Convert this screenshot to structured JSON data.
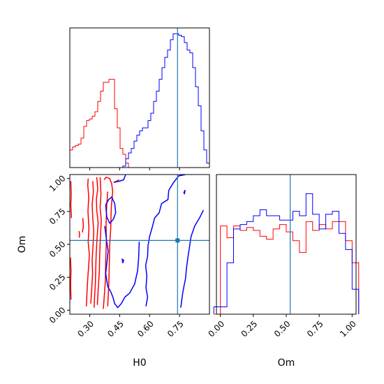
{
  "chart_data": {
    "type": "corner",
    "params": [
      "H0",
      "Om"
    ],
    "xlabels": {
      "h0": "H0",
      "om": "Om"
    },
    "ylabel": "Om",
    "colors": {
      "series_a": "#ff0000",
      "series_b": "#0000ff",
      "truth": "#1f77b4"
    },
    "truth": {
      "H0": 0.74,
      "Om": 0.53
    },
    "ranges": {
      "H0": [
        0.2,
        0.9
      ],
      "Om": [
        -0.03,
        1.03
      ]
    },
    "ticks": {
      "H0": [
        0.3,
        0.45,
        0.6,
        0.75
      ],
      "Om": [
        0.0,
        0.25,
        0.5,
        0.75,
        1.0
      ]
    },
    "tick_labels": {
      "H0": [
        "0.30",
        "0.45",
        "0.60",
        "0.75"
      ],
      "Om": [
        "0.00",
        "0.25",
        "0.50",
        "0.75",
        "1.00"
      ]
    },
    "hist_H0": {
      "bins": [
        0.2,
        0.214,
        0.228,
        0.242,
        0.256,
        0.27,
        0.284,
        0.298,
        0.312,
        0.326,
        0.34,
        0.354,
        0.368,
        0.382,
        0.396,
        0.41,
        0.424,
        0.438,
        0.452,
        0.466,
        0.48,
        0.494,
        0.508,
        0.522,
        0.536,
        0.55,
        0.564,
        0.578,
        0.592,
        0.606,
        0.62,
        0.634,
        0.648,
        0.662,
        0.676,
        0.69,
        0.704,
        0.718,
        0.732,
        0.746,
        0.76,
        0.774,
        0.788,
        0.802,
        0.816,
        0.83,
        0.844,
        0.858,
        0.872,
        0.886,
        0.9
      ],
      "series_a": [
        0.12,
        0.14,
        0.15,
        0.16,
        0.2,
        0.28,
        0.32,
        0.33,
        0.35,
        0.38,
        0.45,
        0.52,
        0.58,
        0.58,
        0.6,
        0.6,
        0.4,
        0.27,
        0.13,
        0.09,
        0.03,
        0,
        0,
        0,
        0,
        0,
        0,
        0,
        0,
        0,
        0,
        0,
        0,
        0,
        0,
        0,
        0,
        0,
        0,
        0,
        0,
        0,
        0,
        0,
        0,
        0,
        0,
        0,
        0,
        0
      ],
      "series_b": [
        0,
        0,
        0,
        0,
        0,
        0,
        0,
        0,
        0,
        0,
        0,
        0,
        0,
        0,
        0,
        0,
        0,
        0,
        0,
        0.01,
        0.06,
        0.1,
        0.13,
        0.18,
        0.22,
        0.25,
        0.27,
        0.27,
        0.32,
        0.37,
        0.45,
        0.52,
        0.6,
        0.68,
        0.75,
        0.8,
        0.87,
        0.91,
        0.91,
        0.9,
        0.89,
        0.85,
        0.8,
        0.78,
        0.68,
        0.55,
        0.42,
        0.25,
        0.12,
        0.03
      ]
    },
    "hist_Om": {
      "bins": [
        -0.05,
        0.0,
        0.05,
        0.1,
        0.15,
        0.2,
        0.25,
        0.3,
        0.35,
        0.4,
        0.45,
        0.5,
        0.55,
        0.6,
        0.65,
        0.7,
        0.75,
        0.8,
        0.85,
        0.9,
        0.95,
        1.0,
        1.05
      ],
      "series_a": [
        0,
        0.6,
        0.52,
        0.6,
        0.57,
        0.59,
        0.57,
        0.53,
        0.51,
        0.58,
        0.61,
        0.56,
        0.5,
        0.42,
        0.63,
        0.57,
        0.61,
        0.58,
        0.63,
        0.63,
        0.5,
        0.35
      ],
      "series_b": [
        0.05,
        0.05,
        0.35,
        0.58,
        0.61,
        0.63,
        0.67,
        0.71,
        0.67,
        0.67,
        0.64,
        0.64,
        0.7,
        0.67,
        0.82,
        0.68,
        0.58,
        0.68,
        0.7,
        0.55,
        0.44,
        0.17
      ]
    },
    "contours": {
      "series_a": [
        [
          [
            0.205,
            0.98
          ],
          [
            0.207,
            0.88
          ],
          [
            0.205,
            0.8
          ],
          [
            0.208,
            0.7
          ]
        ],
        [
          [
            0.203,
            0.4
          ],
          [
            0.206,
            0.3
          ],
          [
            0.204,
            0.2
          ],
          [
            0.206,
            0.08
          ]
        ],
        [
          [
            0.292,
            1.0
          ],
          [
            0.29,
            0.95
          ],
          [
            0.295,
            0.86
          ],
          [
            0.291,
            0.75
          ],
          [
            0.296,
            0.62
          ],
          [
            0.292,
            0.52
          ],
          [
            0.298,
            0.42
          ],
          [
            0.294,
            0.33
          ],
          [
            0.29,
            0.24
          ],
          [
            0.286,
            0.14
          ],
          [
            0.283,
            0.03
          ]
        ],
        [
          [
            0.315,
            0.98
          ],
          [
            0.318,
            0.9
          ],
          [
            0.312,
            0.8
          ],
          [
            0.315,
            0.7
          ],
          [
            0.32,
            0.6
          ],
          [
            0.316,
            0.48
          ],
          [
            0.312,
            0.38
          ],
          [
            0.314,
            0.28
          ],
          [
            0.31,
            0.16
          ],
          [
            0.305,
            0.05
          ]
        ],
        [
          [
            0.335,
            1.01
          ],
          [
            0.34,
            0.92
          ],
          [
            0.333,
            0.84
          ],
          [
            0.335,
            0.76
          ],
          [
            0.342,
            0.66
          ],
          [
            0.336,
            0.54
          ],
          [
            0.332,
            0.42
          ],
          [
            0.33,
            0.3
          ],
          [
            0.328,
            0.2
          ],
          [
            0.324,
            0.1
          ],
          [
            0.322,
            0.02
          ]
        ],
        [
          [
            0.352,
            1.01
          ],
          [
            0.356,
            0.88
          ],
          [
            0.352,
            0.78
          ],
          [
            0.358,
            0.68
          ],
          [
            0.354,
            0.58
          ],
          [
            0.35,
            0.44
          ],
          [
            0.348,
            0.3
          ],
          [
            0.343,
            0.18
          ],
          [
            0.338,
            0.04
          ]
        ],
        [
          [
            0.39,
            0.9
          ],
          [
            0.385,
            0.8
          ],
          [
            0.382,
            0.66
          ],
          [
            0.383,
            0.52
          ],
          [
            0.38,
            0.38
          ],
          [
            0.378,
            0.22
          ],
          [
            0.372,
            0.09
          ],
          [
            0.368,
            0.01
          ]
        ],
        [
          [
            0.372,
            0.99
          ],
          [
            0.382,
            1.01
          ],
          [
            0.4,
            1.0
          ],
          [
            0.41,
            0.96
          ],
          [
            0.415,
            0.9
          ],
          [
            0.408,
            0.78
          ],
          [
            0.405,
            0.62
          ],
          [
            0.4,
            0.5
          ],
          [
            0.398,
            0.36
          ],
          [
            0.396,
            0.22
          ],
          [
            0.392,
            0.1
          ],
          [
            0.39,
            0.03
          ]
        ],
        [
          [
            0.42,
            0.97
          ],
          [
            0.435,
            0.98
          ],
          [
            0.447,
            0.99
          ]
        ],
        [
          [
            0.265,
            0.7
          ],
          [
            0.268,
            0.64
          ],
          [
            0.263,
            0.59
          ]
        ],
        [
          [
            0.246,
            0.6
          ],
          [
            0.249,
            0.58
          ],
          [
            0.247,
            0.55
          ]
        ]
      ],
      "series_b": [
        [
          [
            0.375,
            0.64
          ],
          [
            0.385,
            0.52
          ],
          [
            0.392,
            0.45
          ],
          [
            0.386,
            0.36
          ],
          [
            0.38,
            0.28
          ],
          [
            0.39,
            0.18
          ],
          [
            0.405,
            0.14
          ],
          [
            0.416,
            0.1
          ],
          [
            0.425,
            0.05
          ],
          [
            0.44,
            0.02
          ],
          [
            0.458,
            0.05
          ],
          [
            0.476,
            0.1
          ],
          [
            0.5,
            0.13
          ],
          [
            0.525,
            0.2
          ],
          [
            0.54,
            0.3
          ],
          [
            0.545,
            0.4
          ],
          [
            0.548,
            0.52
          ]
        ],
        [
          [
            0.42,
            0.97
          ],
          [
            0.45,
            0.98
          ],
          [
            0.47,
            0.99
          ],
          [
            0.48,
            1.03
          ]
        ],
        [
          [
            0.38,
            0.8
          ],
          [
            0.395,
            0.84
          ],
          [
            0.41,
            0.86
          ],
          [
            0.425,
            0.81
          ],
          [
            0.43,
            0.74
          ],
          [
            0.418,
            0.69
          ],
          [
            0.4,
            0.66
          ],
          [
            0.385,
            0.71
          ],
          [
            0.38,
            0.8
          ]
        ],
        [
          [
            0.582,
            0.03
          ],
          [
            0.59,
            0.1
          ],
          [
            0.582,
            0.17
          ],
          [
            0.586,
            0.26
          ],
          [
            0.58,
            0.34
          ],
          [
            0.59,
            0.41
          ],
          [
            0.592,
            0.49
          ],
          [
            0.6,
            0.56
          ],
          [
            0.615,
            0.64
          ],
          [
            0.625,
            0.7
          ],
          [
            0.648,
            0.74
          ],
          [
            0.66,
            0.81
          ],
          [
            0.692,
            0.84
          ],
          [
            0.696,
            0.91
          ],
          [
            0.72,
            0.97
          ],
          [
            0.746,
            1.02
          ],
          [
            0.78,
            1.03
          ]
        ],
        [
          [
            0.87,
            0.76
          ],
          [
            0.85,
            0.7
          ],
          [
            0.826,
            0.64
          ],
          [
            0.808,
            0.56
          ],
          [
            0.8,
            0.48
          ],
          [
            0.792,
            0.4
          ],
          [
            0.785,
            0.32
          ],
          [
            0.78,
            0.24
          ],
          [
            0.772,
            0.18
          ],
          [
            0.765,
            0.12
          ],
          [
            0.76,
            0.06
          ],
          [
            0.756,
            0.02
          ]
        ],
        [
          [
            0.46,
            0.39
          ],
          [
            0.47,
            0.38
          ],
          [
            0.466,
            0.36
          ],
          [
            0.462,
            0.38
          ]
        ],
        [
          [
            0.77,
            0.89
          ],
          [
            0.778,
            0.91
          ],
          [
            0.774,
            0.88
          ]
        ]
      ]
    }
  }
}
